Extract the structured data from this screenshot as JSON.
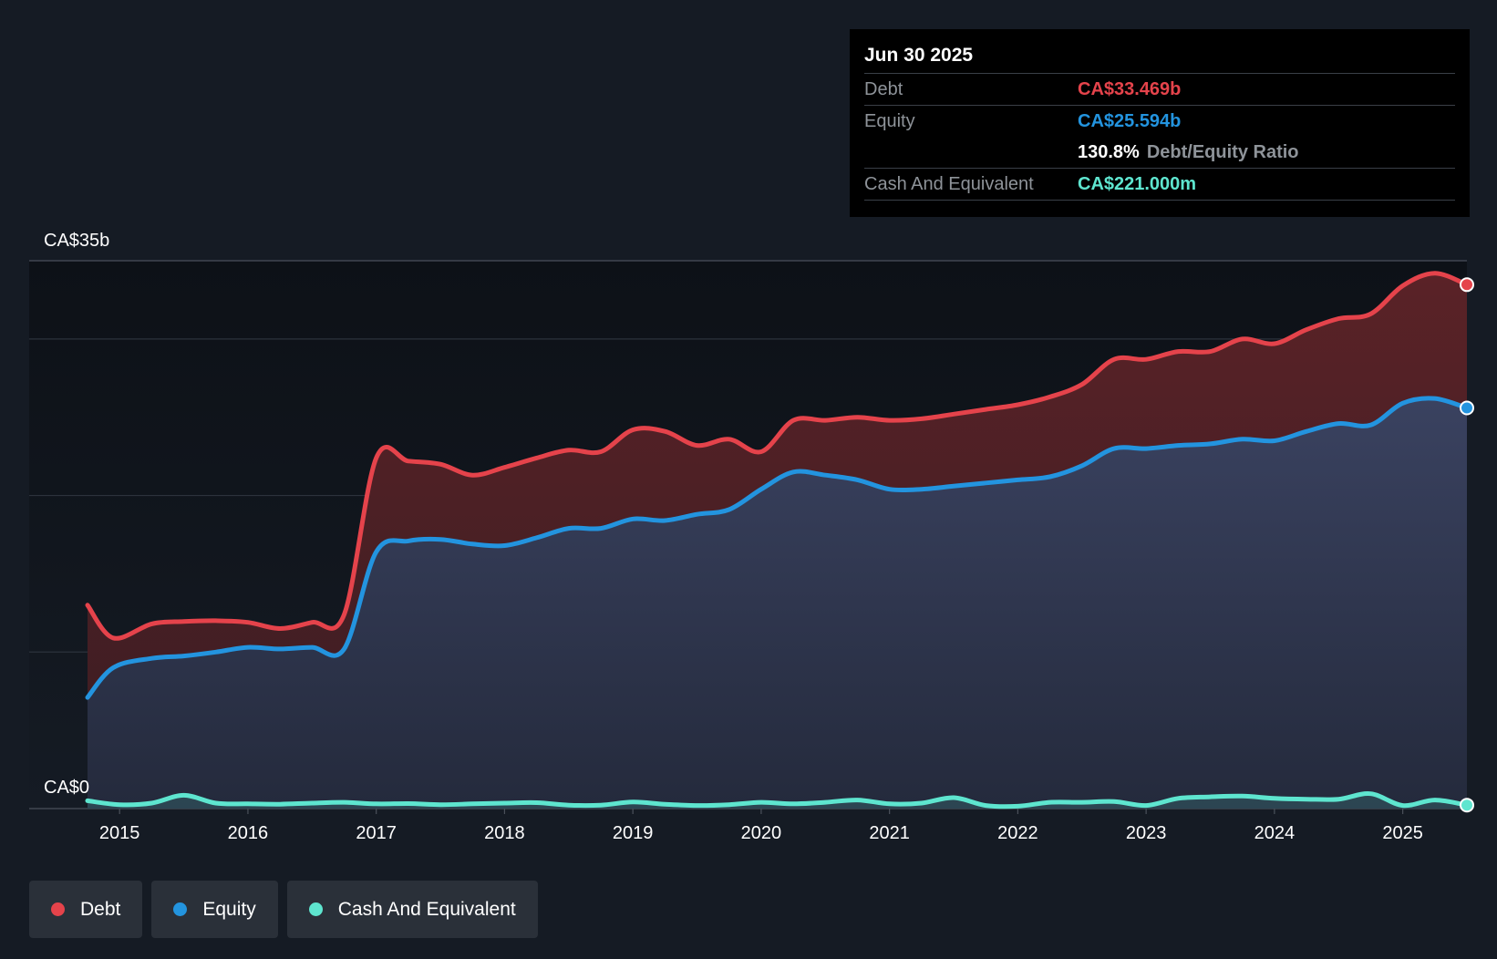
{
  "tooltip": {
    "date": "Jun 30 2025",
    "debt_label": "Debt",
    "debt_value": "CA$33.469b",
    "equity_label": "Equity",
    "equity_value": "CA$25.594b",
    "ratio_value": "130.8%",
    "ratio_label": "Debt/Equity Ratio",
    "cash_label": "Cash And Equivalent",
    "cash_value": "CA$221.000m"
  },
  "legend": {
    "debt": "Debt",
    "equity": "Equity",
    "cash": "Cash And Equivalent"
  },
  "colors": {
    "debt": "#e5434b",
    "equity": "#2394df",
    "cash": "#5ee5cf",
    "background": "#151b24"
  },
  "chart_data": {
    "type": "area",
    "title": "",
    "xlabel": "",
    "ylabel": "",
    "y_tick_labels": [
      "CA$0",
      "CA$35b"
    ],
    "ylim": [
      0,
      35
    ],
    "xlim": [
      2014.75,
      2025.5
    ],
    "x_ticks": [
      2015,
      2016,
      2017,
      2018,
      2019,
      2020,
      2021,
      2022,
      2023,
      2024,
      2025
    ],
    "x_tick_labels": [
      "2015",
      "2016",
      "2017",
      "2018",
      "2019",
      "2020",
      "2021",
      "2022",
      "2023",
      "2024",
      "2025"
    ],
    "series": [
      {
        "name": "Debt",
        "unit": "CA$b",
        "points": [
          [
            2014.75,
            13.0
          ],
          [
            2014.95,
            10.9
          ],
          [
            2015.25,
            11.8
          ],
          [
            2015.5,
            11.95
          ],
          [
            2015.75,
            12.0
          ],
          [
            2016.0,
            11.9
          ],
          [
            2016.25,
            11.5
          ],
          [
            2016.5,
            11.9
          ],
          [
            2016.75,
            12.4
          ],
          [
            2017.0,
            22.4
          ],
          [
            2017.25,
            22.2
          ],
          [
            2017.5,
            22.0
          ],
          [
            2017.75,
            21.3
          ],
          [
            2018.0,
            21.8
          ],
          [
            2018.25,
            22.4
          ],
          [
            2018.5,
            22.9
          ],
          [
            2018.75,
            22.8
          ],
          [
            2019.0,
            24.2
          ],
          [
            2019.25,
            24.1
          ],
          [
            2019.5,
            23.2
          ],
          [
            2019.75,
            23.6
          ],
          [
            2020.0,
            22.8
          ],
          [
            2020.25,
            24.8
          ],
          [
            2020.5,
            24.8
          ],
          [
            2020.75,
            25.0
          ],
          [
            2021.0,
            24.8
          ],
          [
            2021.25,
            24.9
          ],
          [
            2021.5,
            25.2
          ],
          [
            2021.75,
            25.5
          ],
          [
            2022.0,
            25.8
          ],
          [
            2022.25,
            26.3
          ],
          [
            2022.5,
            27.1
          ],
          [
            2022.75,
            28.7
          ],
          [
            2023.0,
            28.7
          ],
          [
            2023.25,
            29.2
          ],
          [
            2023.5,
            29.2
          ],
          [
            2023.75,
            30.0
          ],
          [
            2024.0,
            29.7
          ],
          [
            2024.25,
            30.6
          ],
          [
            2024.5,
            31.3
          ],
          [
            2024.75,
            31.6
          ],
          [
            2025.0,
            33.4
          ],
          [
            2025.25,
            34.2
          ],
          [
            2025.5,
            33.469
          ]
        ]
      },
      {
        "name": "Equity",
        "unit": "CA$b",
        "points": [
          [
            2014.75,
            7.1
          ],
          [
            2014.95,
            9.0
          ],
          [
            2015.25,
            9.6
          ],
          [
            2015.5,
            9.75
          ],
          [
            2015.75,
            10.0
          ],
          [
            2016.0,
            10.3
          ],
          [
            2016.25,
            10.2
          ],
          [
            2016.5,
            10.3
          ],
          [
            2016.75,
            10.2
          ],
          [
            2017.0,
            16.4
          ],
          [
            2017.25,
            17.1
          ],
          [
            2017.5,
            17.2
          ],
          [
            2017.75,
            16.9
          ],
          [
            2018.0,
            16.8
          ],
          [
            2018.25,
            17.3
          ],
          [
            2018.5,
            17.9
          ],
          [
            2018.75,
            17.9
          ],
          [
            2019.0,
            18.5
          ],
          [
            2019.25,
            18.4
          ],
          [
            2019.5,
            18.8
          ],
          [
            2019.75,
            19.1
          ],
          [
            2020.0,
            20.4
          ],
          [
            2020.25,
            21.5
          ],
          [
            2020.5,
            21.3
          ],
          [
            2020.75,
            21.0
          ],
          [
            2021.0,
            20.4
          ],
          [
            2021.25,
            20.4
          ],
          [
            2021.5,
            20.6
          ],
          [
            2021.75,
            20.8
          ],
          [
            2022.0,
            21.0
          ],
          [
            2022.25,
            21.2
          ],
          [
            2022.5,
            21.9
          ],
          [
            2022.75,
            23.0
          ],
          [
            2023.0,
            23.0
          ],
          [
            2023.25,
            23.2
          ],
          [
            2023.5,
            23.3
          ],
          [
            2023.75,
            23.6
          ],
          [
            2024.0,
            23.5
          ],
          [
            2024.25,
            24.1
          ],
          [
            2024.5,
            24.6
          ],
          [
            2024.75,
            24.5
          ],
          [
            2025.0,
            25.9
          ],
          [
            2025.25,
            26.2
          ],
          [
            2025.5,
            25.594
          ]
        ]
      },
      {
        "name": "Cash And Equivalent",
        "unit": "CA$b",
        "points": [
          [
            2014.75,
            0.5
          ],
          [
            2015.0,
            0.25
          ],
          [
            2015.25,
            0.35
          ],
          [
            2015.5,
            0.85
          ],
          [
            2015.75,
            0.35
          ],
          [
            2016.0,
            0.3
          ],
          [
            2016.25,
            0.28
          ],
          [
            2016.5,
            0.35
          ],
          [
            2016.75,
            0.4
          ],
          [
            2017.0,
            0.3
          ],
          [
            2017.25,
            0.32
          ],
          [
            2017.5,
            0.25
          ],
          [
            2017.75,
            0.3
          ],
          [
            2018.0,
            0.35
          ],
          [
            2018.25,
            0.38
          ],
          [
            2018.5,
            0.22
          ],
          [
            2018.75,
            0.22
          ],
          [
            2019.0,
            0.42
          ],
          [
            2019.25,
            0.28
          ],
          [
            2019.5,
            0.2
          ],
          [
            2019.75,
            0.25
          ],
          [
            2020.0,
            0.4
          ],
          [
            2020.25,
            0.3
          ],
          [
            2020.5,
            0.4
          ],
          [
            2020.75,
            0.55
          ],
          [
            2021.0,
            0.3
          ],
          [
            2021.25,
            0.35
          ],
          [
            2021.5,
            0.7
          ],
          [
            2021.75,
            0.2
          ],
          [
            2022.0,
            0.15
          ],
          [
            2022.25,
            0.4
          ],
          [
            2022.5,
            0.4
          ],
          [
            2022.75,
            0.45
          ],
          [
            2023.0,
            0.2
          ],
          [
            2023.25,
            0.65
          ],
          [
            2023.5,
            0.75
          ],
          [
            2023.75,
            0.8
          ],
          [
            2024.0,
            0.65
          ],
          [
            2024.25,
            0.6
          ],
          [
            2024.5,
            0.6
          ],
          [
            2024.75,
            0.95
          ],
          [
            2025.0,
            0.2
          ],
          [
            2025.25,
            0.55
          ],
          [
            2025.5,
            0.221
          ]
        ]
      }
    ]
  }
}
